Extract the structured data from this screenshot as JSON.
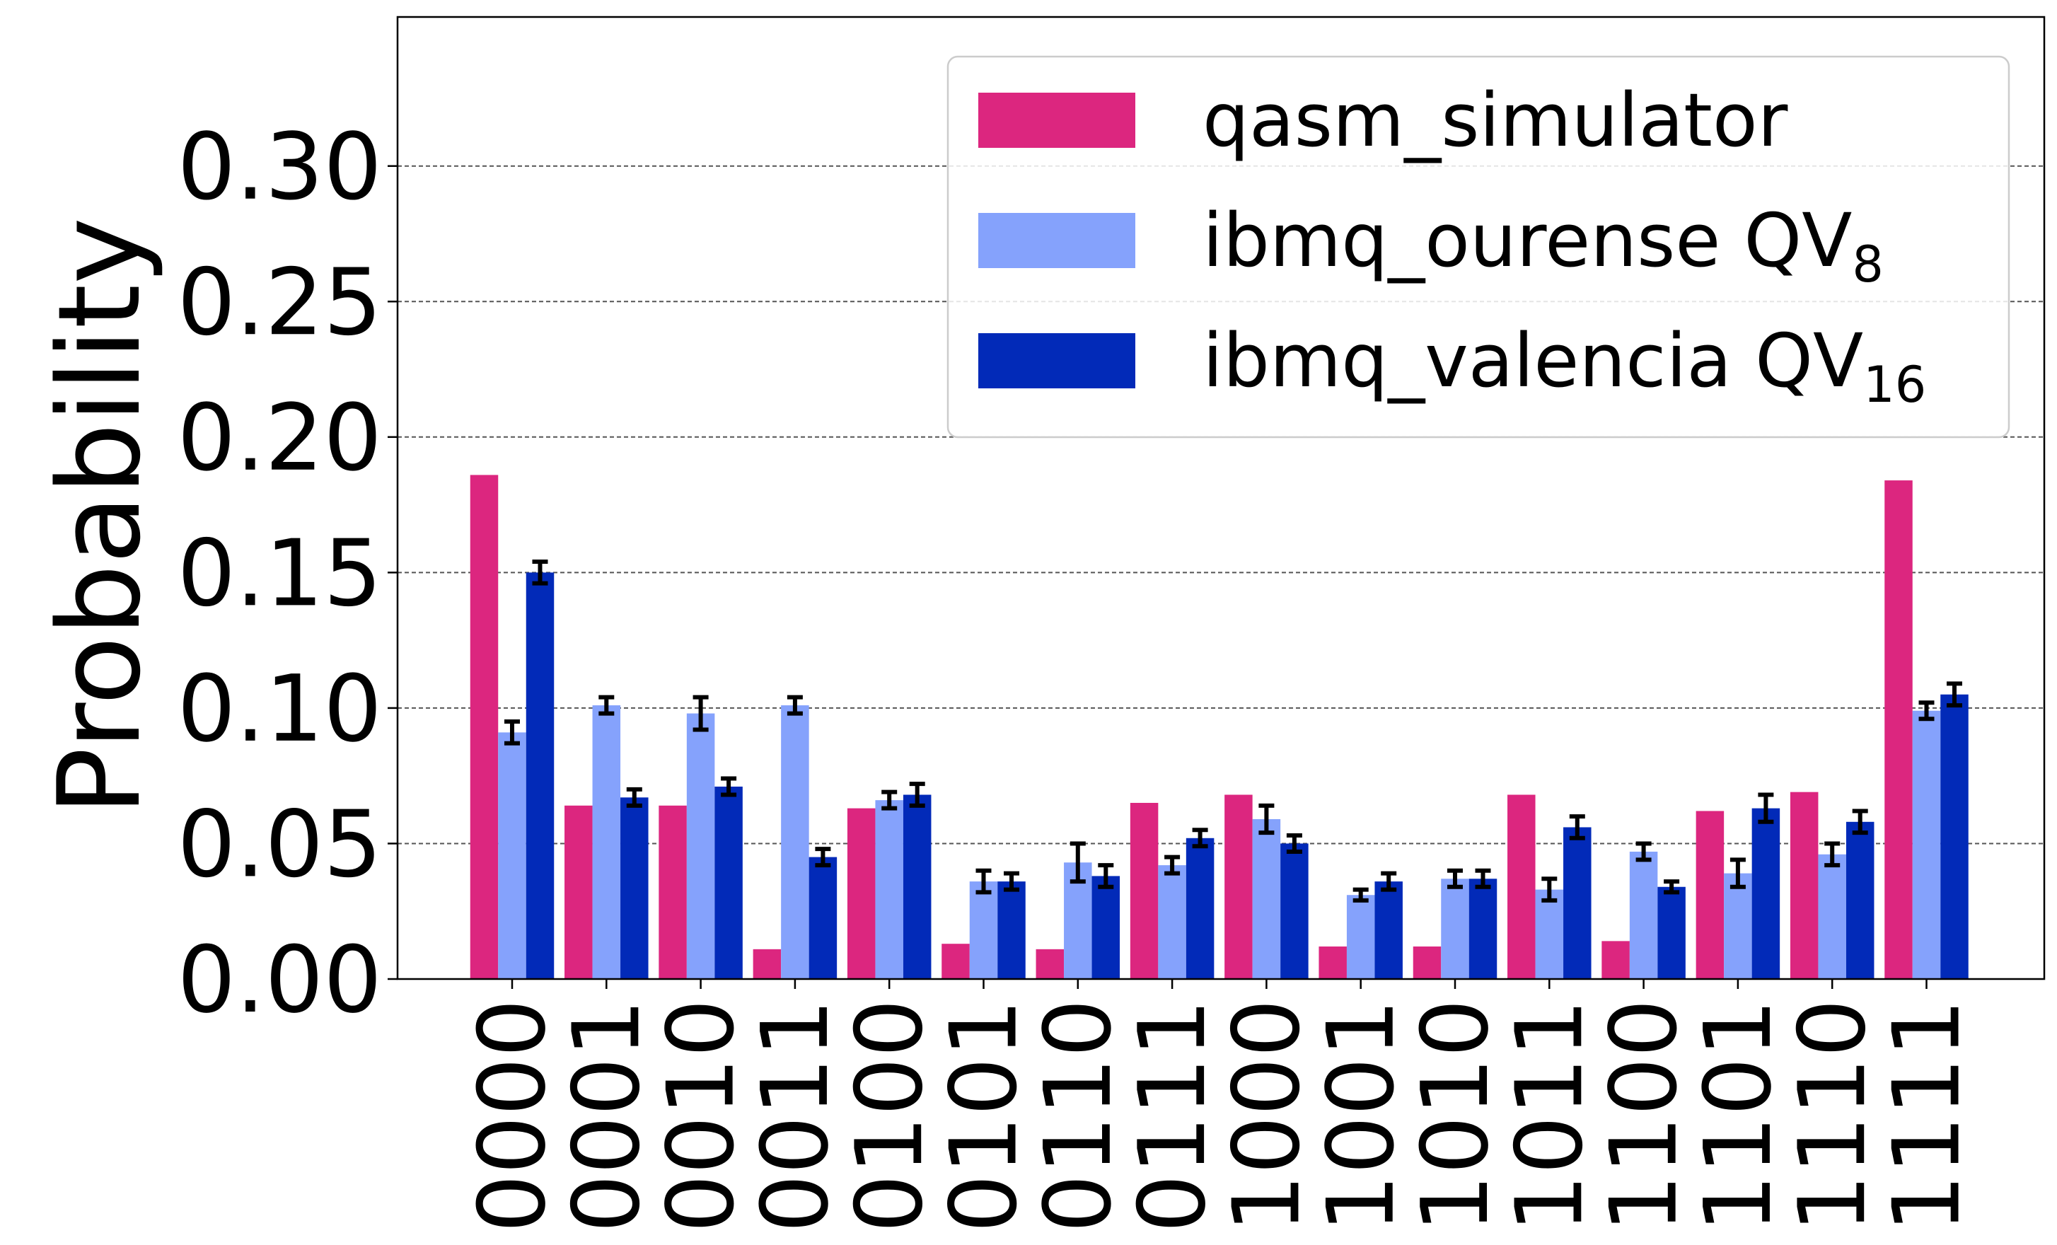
{
  "chart_data": {
    "type": "bar",
    "title": "",
    "xlabel": "",
    "ylabel": "Probability",
    "ylim": [
      0,
      0.355
    ],
    "yticks": [
      "0.00",
      "0.05",
      "0.10",
      "0.15",
      "0.20",
      "0.25",
      "0.30"
    ],
    "grid": "horizontal dashed",
    "legend_position": "top-right",
    "categories": [
      "0000",
      "0001",
      "0010",
      "0011",
      "0100",
      "0101",
      "0110",
      "0111",
      "1000",
      "1001",
      "1010",
      "1011",
      "1100",
      "1101",
      "1110",
      "1111"
    ],
    "series": [
      {
        "name": "qasm_simulator",
        "name_sub": "",
        "color": "#dc267f",
        "values": [
          0.186,
          0.064,
          0.064,
          0.011,
          0.063,
          0.013,
          0.011,
          0.065,
          0.068,
          0.012,
          0.012,
          0.068,
          0.014,
          0.062,
          0.069,
          0.184
        ],
        "errors": null
      },
      {
        "name": "ibmq_ourense QV",
        "name_sub": "8",
        "color": "#85a2fc",
        "values": [
          0.091,
          0.101,
          0.098,
          0.101,
          0.066,
          0.036,
          0.043,
          0.042,
          0.059,
          0.031,
          0.037,
          0.033,
          0.047,
          0.039,
          0.046,
          0.099
        ],
        "errors": [
          0.004,
          0.003,
          0.006,
          0.003,
          0.003,
          0.004,
          0.007,
          0.003,
          0.005,
          0.002,
          0.003,
          0.004,
          0.003,
          0.005,
          0.004,
          0.003
        ]
      },
      {
        "name": "ibmq_valencia QV",
        "name_sub": "16",
        "color": "#022ab8",
        "values": [
          0.15,
          0.067,
          0.071,
          0.045,
          0.068,
          0.036,
          0.038,
          0.052,
          0.05,
          0.036,
          0.037,
          0.056,
          0.034,
          0.063,
          0.058,
          0.105
        ],
        "errors": [
          0.004,
          0.003,
          0.003,
          0.003,
          0.004,
          0.003,
          0.004,
          0.003,
          0.003,
          0.003,
          0.003,
          0.004,
          0.002,
          0.005,
          0.004,
          0.004
        ]
      }
    ]
  }
}
